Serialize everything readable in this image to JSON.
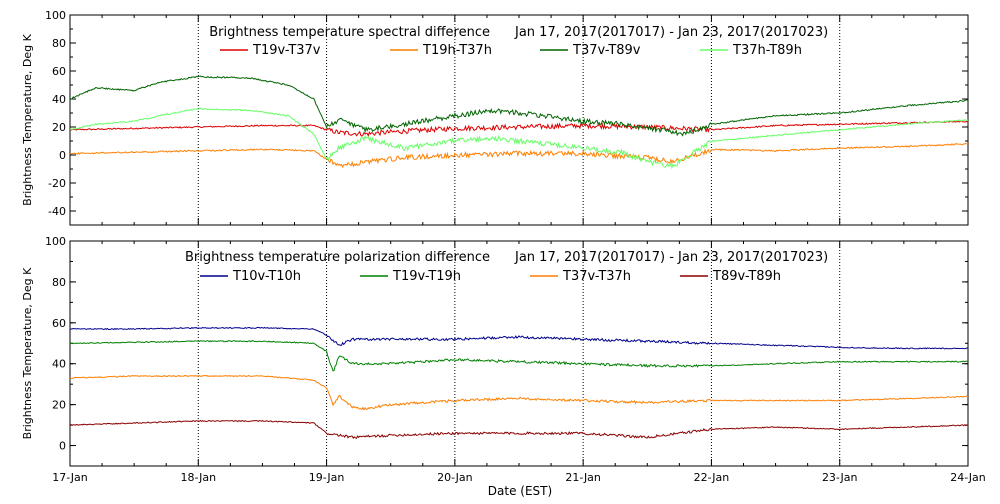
{
  "xlabel": "Date (EST)",
  "x_ticks": [
    "17-Jan",
    "18-Jan",
    "19-Jan",
    "20-Jan",
    "21-Jan",
    "22-Jan",
    "23-Jan",
    "24-Jan"
  ],
  "chart_data": [
    {
      "type": "line",
      "title": "Brightness temperature spectral difference",
      "date_range": "Jan 17, 2017(2017017) - Jan 23, 2017(2017023)",
      "ylabel": "Brightness Temperature, Deg K",
      "xlim": [
        "17-Jan",
        "24-Jan"
      ],
      "ylim": [
        -50,
        100
      ],
      "y_ticks": [
        -40,
        -20,
        0,
        20,
        40,
        60,
        80,
        100
      ],
      "grid": "vertical dotted at each day",
      "legend_position": "top",
      "series": [
        {
          "name": "T19v-T37v",
          "color": "#dd0000",
          "x": [
            17.0,
            17.5,
            18.0,
            18.5,
            18.9,
            19.0,
            19.1,
            19.3,
            19.6,
            20.0,
            20.5,
            21.0,
            21.5,
            22.0,
            22.5,
            23.0,
            23.5,
            24.0
          ],
          "y": [
            18,
            19,
            20,
            21,
            21,
            18,
            16,
            15,
            17,
            19,
            20,
            21,
            20,
            18,
            21,
            22,
            23,
            24
          ]
        },
        {
          "name": "T19h-T37h",
          "color": "#ff7f00",
          "x": [
            17.0,
            17.5,
            18.0,
            18.5,
            18.9,
            19.0,
            19.1,
            19.3,
            19.6,
            20.0,
            20.5,
            21.0,
            21.5,
            21.7,
            22.0,
            22.5,
            23.0,
            23.5,
            24.0
          ],
          "y": [
            1,
            2,
            3,
            4,
            3,
            -3,
            -8,
            -5,
            -2,
            0,
            1,
            1,
            -2,
            -5,
            4,
            3,
            5,
            6,
            8
          ]
        },
        {
          "name": "T37v-T89v",
          "color": "#006400",
          "x": [
            17.0,
            17.2,
            17.5,
            17.7,
            18.0,
            18.4,
            18.7,
            18.9,
            19.0,
            19.1,
            19.3,
            19.6,
            20.0,
            20.3,
            20.7,
            21.0,
            21.3,
            21.6,
            21.8,
            22.0,
            22.5,
            23.0,
            23.5,
            24.0
          ],
          "y": [
            40,
            48,
            46,
            52,
            56,
            55,
            50,
            40,
            20,
            25,
            18,
            22,
            28,
            32,
            28,
            24,
            22,
            18,
            15,
            22,
            28,
            30,
            35,
            39
          ]
        },
        {
          "name": "T37h-T89h",
          "color": "#66ff66",
          "x": [
            17.0,
            17.2,
            17.5,
            17.8,
            18.0,
            18.4,
            18.7,
            18.9,
            19.0,
            19.1,
            19.3,
            19.6,
            20.0,
            20.3,
            20.7,
            21.0,
            21.3,
            21.5,
            21.7,
            22.0,
            22.5,
            23.0,
            23.5,
            24.0
          ],
          "y": [
            18,
            22,
            24,
            30,
            33,
            32,
            28,
            15,
            -3,
            5,
            12,
            5,
            10,
            12,
            8,
            5,
            2,
            -5,
            -8,
            10,
            14,
            18,
            22,
            25
          ]
        }
      ]
    },
    {
      "type": "line",
      "title": "Brightness temperature polarization difference",
      "date_range": "Jan 17, 2017(2017017) - Jan 23, 2017(2017023)",
      "ylabel": "Brightness Temperature, Deg K",
      "xlim": [
        "17-Jan",
        "24-Jan"
      ],
      "ylim": [
        -10,
        100
      ],
      "y_ticks": [
        0,
        20,
        40,
        60,
        80,
        100
      ],
      "grid": "vertical dotted at each day",
      "legend_position": "top",
      "series": [
        {
          "name": "T10v-T10h",
          "color": "#00008b",
          "x": [
            17.0,
            17.5,
            18.0,
            18.5,
            18.9,
            19.0,
            19.1,
            19.2,
            19.5,
            20.0,
            20.5,
            21.0,
            21.5,
            22.0,
            22.5,
            23.0,
            23.5,
            24.0
          ],
          "y": [
            57,
            57,
            57.5,
            57.5,
            57,
            54,
            49,
            52,
            52,
            52,
            53,
            52,
            51,
            50,
            49,
            48,
            47.5,
            47.5
          ]
        },
        {
          "name": "T19v-T19h",
          "color": "#008000",
          "x": [
            17.0,
            17.5,
            18.0,
            18.5,
            18.9,
            19.0,
            19.05,
            19.1,
            19.2,
            19.5,
            20.0,
            20.5,
            21.0,
            21.5,
            22.0,
            22.5,
            23.0,
            23.5,
            24.0
          ],
          "y": [
            50,
            50.5,
            51,
            51,
            50,
            46,
            36,
            44,
            40,
            40,
            42,
            41,
            40,
            39,
            39,
            40,
            41,
            41,
            41
          ]
        },
        {
          "name": "T37v-T37h",
          "color": "#ff7f00",
          "x": [
            17.0,
            17.5,
            18.0,
            18.5,
            18.9,
            19.0,
            19.05,
            19.1,
            19.2,
            19.3,
            19.5,
            20.0,
            20.5,
            21.0,
            21.5,
            22.0,
            22.5,
            23.0,
            23.5,
            24.0
          ],
          "y": [
            33,
            34,
            34,
            34,
            32,
            28,
            20,
            24,
            19,
            18,
            20,
            22,
            23,
            22,
            21,
            22,
            22,
            22,
            23,
            24
          ]
        },
        {
          "name": "T89v-T89h",
          "color": "#8b0000",
          "x": [
            17.0,
            17.5,
            18.0,
            18.5,
            18.9,
            19.0,
            19.2,
            19.5,
            20.0,
            20.5,
            21.0,
            21.5,
            22.0,
            22.5,
            23.0,
            23.5,
            24.0
          ],
          "y": [
            10,
            11,
            12,
            12,
            11,
            6,
            4,
            5,
            6,
            6,
            6,
            4,
            8,
            9,
            8,
            9,
            10
          ]
        }
      ]
    }
  ]
}
